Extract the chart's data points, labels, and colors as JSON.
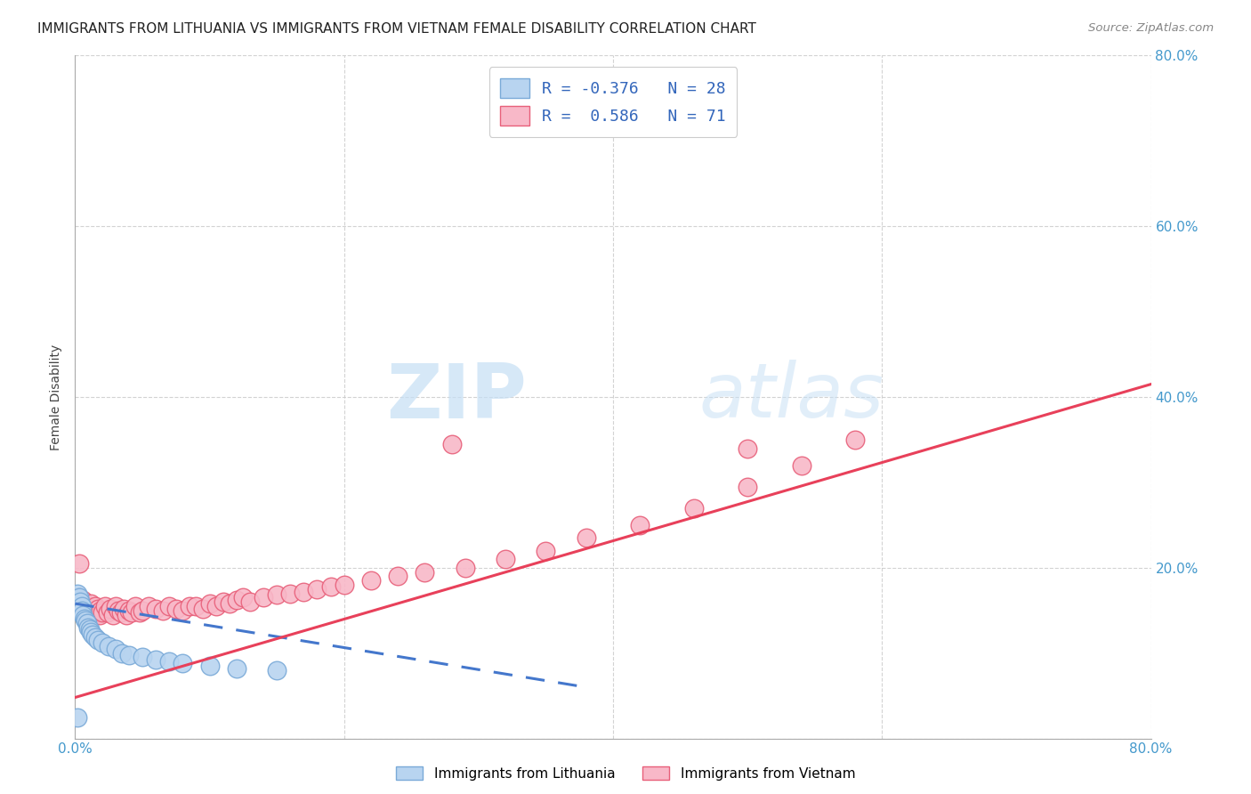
{
  "title": "IMMIGRANTS FROM LITHUANIA VS IMMIGRANTS FROM VIETNAM FEMALE DISABILITY CORRELATION CHART",
  "source": "Source: ZipAtlas.com",
  "ylabel": "Female Disability",
  "xlim": [
    0.0,
    0.8
  ],
  "ylim": [
    0.0,
    0.8
  ],
  "watermark_zip": "ZIP",
  "watermark_atlas": "atlas",
  "background_color": "#ffffff",
  "grid_color": "#c8c8c8",
  "lithuania_color": "#b8d4f0",
  "lithuania_edge_color": "#7aaad8",
  "lithuania_R": -0.376,
  "lithuania_N": 28,
  "lithuania_line_color": "#4477cc",
  "vietnam_color": "#f8b8c8",
  "vietnam_edge_color": "#e8607a",
  "vietnam_R": 0.586,
  "vietnam_N": 71,
  "vietnam_line_color": "#e8405a",
  "lithuania_x": [
    0.002,
    0.003,
    0.004,
    0.005,
    0.005,
    0.006,
    0.007,
    0.008,
    0.009,
    0.01,
    0.011,
    0.012,
    0.013,
    0.015,
    0.017,
    0.02,
    0.025,
    0.03,
    0.035,
    0.04,
    0.05,
    0.06,
    0.07,
    0.08,
    0.1,
    0.12,
    0.15,
    0.002
  ],
  "lithuania_y": [
    0.17,
    0.165,
    0.16,
    0.155,
    0.15,
    0.145,
    0.14,
    0.138,
    0.135,
    0.13,
    0.128,
    0.125,
    0.122,
    0.118,
    0.115,
    0.112,
    0.108,
    0.105,
    0.1,
    0.098,
    0.095,
    0.092,
    0.09,
    0.088,
    0.085,
    0.082,
    0.08,
    0.025
  ],
  "vietnam_x": [
    0.002,
    0.003,
    0.004,
    0.005,
    0.006,
    0.007,
    0.008,
    0.009,
    0.01,
    0.011,
    0.012,
    0.013,
    0.014,
    0.015,
    0.016,
    0.017,
    0.018,
    0.019,
    0.02,
    0.022,
    0.024,
    0.026,
    0.028,
    0.03,
    0.032,
    0.034,
    0.036,
    0.038,
    0.04,
    0.042,
    0.045,
    0.048,
    0.05,
    0.055,
    0.06,
    0.065,
    0.07,
    0.075,
    0.08,
    0.085,
    0.09,
    0.095,
    0.1,
    0.105,
    0.11,
    0.115,
    0.12,
    0.125,
    0.13,
    0.14,
    0.15,
    0.16,
    0.17,
    0.18,
    0.19,
    0.2,
    0.22,
    0.24,
    0.26,
    0.29,
    0.32,
    0.35,
    0.38,
    0.42,
    0.46,
    0.5,
    0.54,
    0.58,
    0.28,
    0.5,
    0.003
  ],
  "vietnam_y": [
    0.16,
    0.165,
    0.158,
    0.155,
    0.162,
    0.15,
    0.155,
    0.148,
    0.152,
    0.145,
    0.158,
    0.15,
    0.145,
    0.155,
    0.148,
    0.152,
    0.145,
    0.15,
    0.148,
    0.155,
    0.148,
    0.152,
    0.145,
    0.155,
    0.15,
    0.148,
    0.152,
    0.145,
    0.15,
    0.148,
    0.155,
    0.148,
    0.15,
    0.155,
    0.152,
    0.15,
    0.155,
    0.152,
    0.15,
    0.155,
    0.155,
    0.152,
    0.158,
    0.155,
    0.16,
    0.158,
    0.162,
    0.165,
    0.16,
    0.165,
    0.168,
    0.17,
    0.172,
    0.175,
    0.178,
    0.18,
    0.185,
    0.19,
    0.195,
    0.2,
    0.21,
    0.22,
    0.235,
    0.25,
    0.27,
    0.295,
    0.32,
    0.35,
    0.345,
    0.34,
    0.205
  ]
}
